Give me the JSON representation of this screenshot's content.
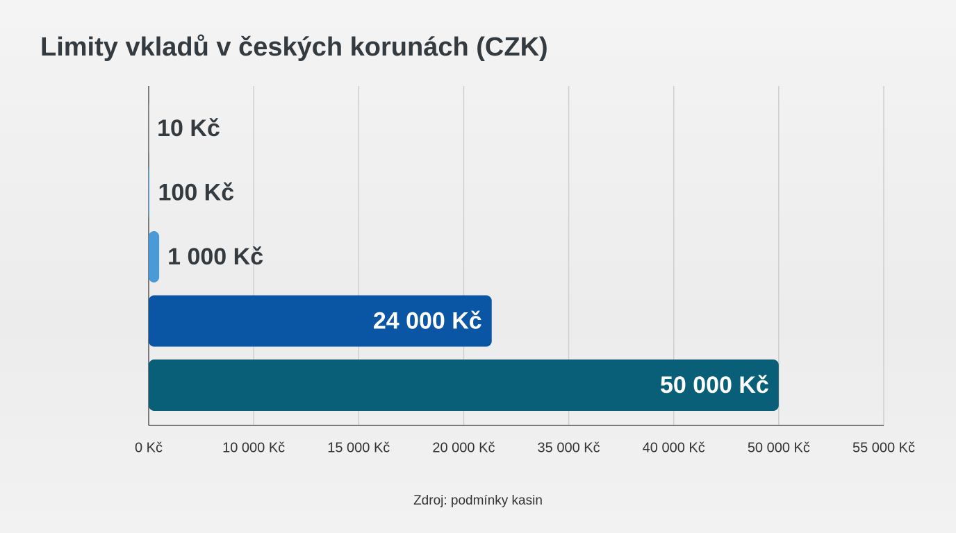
{
  "chart_data": {
    "type": "bar",
    "orientation": "horizontal",
    "title": "Limity vkladů v českých korunách (CZK)",
    "source": "Zdroj: podmínky kasin",
    "categories": [
      null,
      null,
      null,
      null,
      null
    ],
    "values": [
      10,
      100,
      1000,
      24000,
      50000
    ],
    "value_labels": [
      "10 Kč",
      "100 Kč",
      "1 000 Kč",
      "24 000 Kč",
      "50 000 Kč"
    ],
    "colors": [
      "#948a80",
      "#8ec9ef",
      "#4a9ad8",
      "#0b56a4",
      "#0a5f78"
    ],
    "xlim": [
      0,
      55000
    ],
    "xticks": [
      {
        "value": 0,
        "label": "0 Kč"
      },
      {
        "value": 10000,
        "label": "10 000 Kč"
      },
      {
        "value": 15000,
        "label": "15 000 Kč"
      },
      {
        "value": 20000,
        "label": "20 000 Kč"
      },
      {
        "value": 35000,
        "label": "35 000 Kč"
      },
      {
        "value": 40000,
        "label": "40 000 Kč"
      },
      {
        "value": 50000,
        "label": "50 000 Kč"
      },
      {
        "value": 55000,
        "label": "55 000 Kč"
      }
    ],
    "grid": true
  }
}
